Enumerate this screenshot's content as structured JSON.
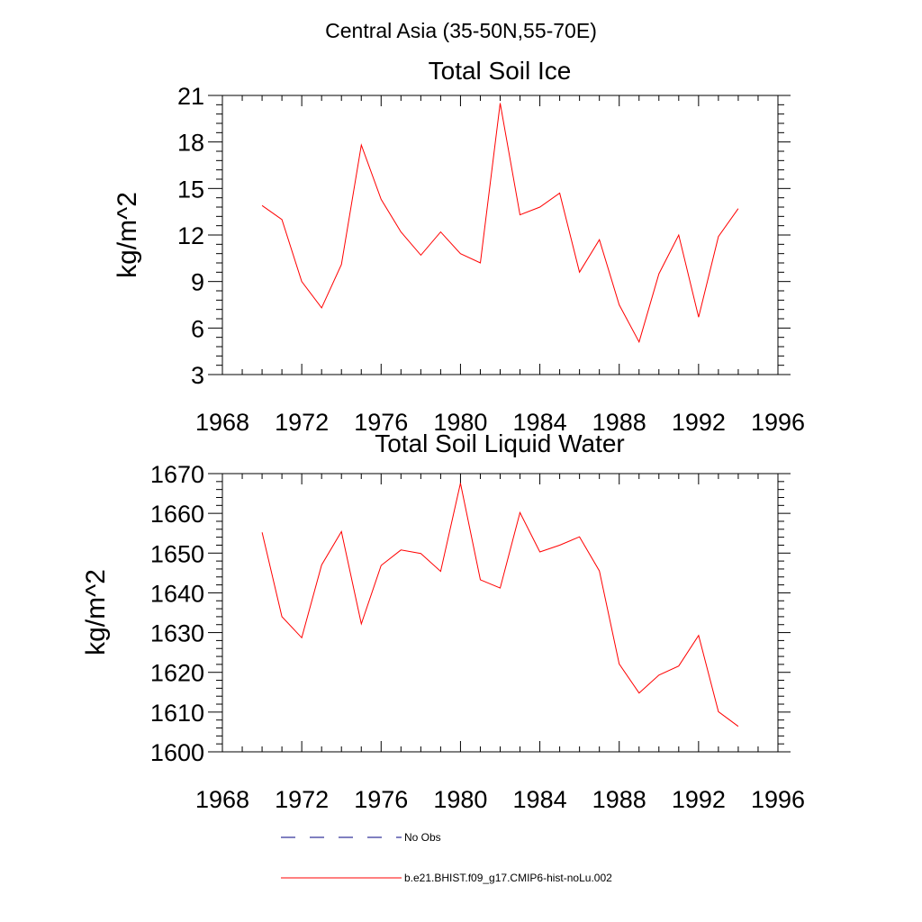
{
  "suptitle": "Central Asia (35-50N,55-70E)",
  "chart_data": [
    {
      "type": "line",
      "title": "Total Soil Ice",
      "xlabel": "",
      "ylabel": "kg/m^2",
      "xlim": [
        1968,
        1996
      ],
      "ylim": [
        3,
        21
      ],
      "xticks": [
        1968,
        1972,
        1976,
        1980,
        1984,
        1988,
        1992,
        1996
      ],
      "yticks": [
        3,
        6,
        9,
        12,
        15,
        18,
        21
      ],
      "x": [
        1970,
        1971,
        1972,
        1973,
        1974,
        1975,
        1976,
        1977,
        1978,
        1979,
        1980,
        1981,
        1982,
        1983,
        1984,
        1985,
        1986,
        1987,
        1988,
        1989,
        1990,
        1991,
        1992,
        1993,
        1994
      ],
      "series": [
        {
          "name": "b.e21.BHIST.f09_g17.CMIP6-hist-noLu.002",
          "color": "#ff0000",
          "values": [
            13.9,
            13.0,
            9.0,
            7.3,
            10.1,
            17.8,
            14.3,
            12.2,
            10.7,
            12.2,
            10.8,
            10.2,
            20.5,
            13.3,
            13.8,
            14.7,
            9.6,
            11.7,
            7.5,
            5.1,
            9.5,
            12.0,
            6.7,
            11.9,
            13.7
          ]
        }
      ],
      "grid": false
    },
    {
      "type": "line",
      "title": "Total Soil Liquid Water",
      "xlabel": "",
      "ylabel": "kg/m^2",
      "xlim": [
        1968,
        1996
      ],
      "ylim": [
        1600,
        1670
      ],
      "xticks": [
        1968,
        1972,
        1976,
        1980,
        1984,
        1988,
        1992,
        1996
      ],
      "yticks": [
        1600,
        1610,
        1620,
        1630,
        1640,
        1650,
        1660,
        1670
      ],
      "x": [
        1970,
        1971,
        1972,
        1973,
        1974,
        1975,
        1976,
        1977,
        1978,
        1979,
        1980,
        1981,
        1982,
        1983,
        1984,
        1985,
        1986,
        1987,
        1988,
        1989,
        1990,
        1991,
        1992,
        1993,
        1994
      ],
      "series": [
        {
          "name": "b.e21.BHIST.f09_g17.CMIP6-hist-noLu.002",
          "color": "#ff0000",
          "values": [
            1655.2,
            1634.0,
            1628.7,
            1647.0,
            1655.4,
            1632.2,
            1646.9,
            1650.8,
            1649.9,
            1645.4,
            1667.6,
            1643.3,
            1641.2,
            1660.2,
            1650.3,
            1652.0,
            1654.1,
            1645.5,
            1622.1,
            1614.8,
            1619.3,
            1621.6,
            1629.3,
            1610.1,
            1606.4
          ]
        }
      ],
      "grid": false
    }
  ],
  "legend": [
    {
      "label": "No Obs",
      "style": "dashed",
      "color": "#000080"
    },
    {
      "label": "b.e21.BHIST.f09_g17.CMIP6-hist-noLu.002",
      "style": "solid",
      "color": "#ff0000"
    }
  ]
}
